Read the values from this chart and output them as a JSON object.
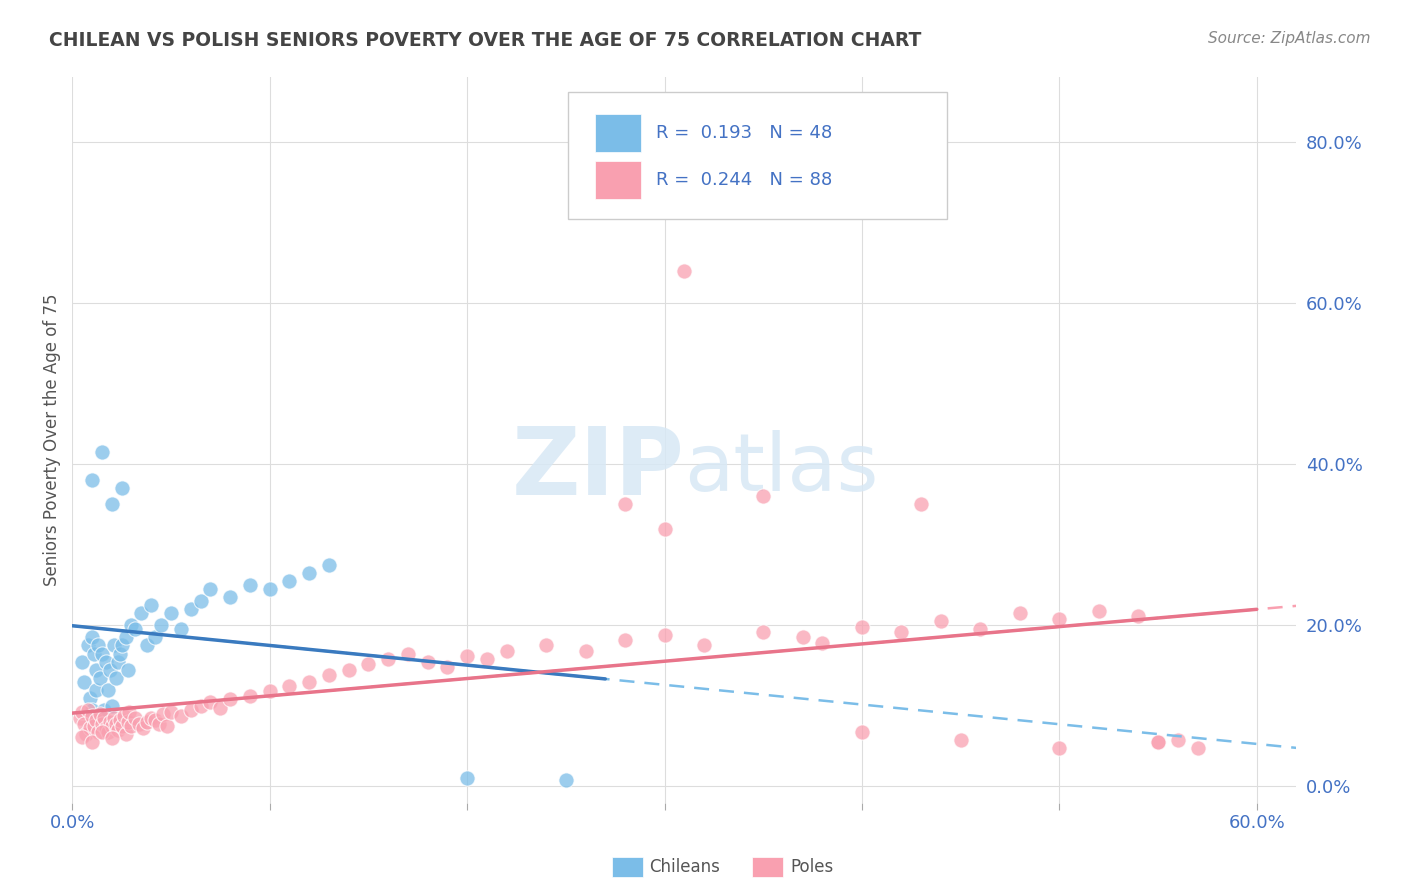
{
  "title": "CHILEAN VS POLISH SENIORS POVERTY OVER THE AGE OF 75 CORRELATION CHART",
  "source_text": "Source: ZipAtlas.com",
  "ylabel": "Seniors Poverty Over the Age of 75",
  "xlim": [
    0.0,
    0.62
  ],
  "ylim": [
    -0.02,
    0.88
  ],
  "xticks": [
    0.0,
    0.1,
    0.2,
    0.3,
    0.4,
    0.5,
    0.6
  ],
  "yticks": [
    0.0,
    0.2,
    0.4,
    0.6,
    0.8
  ],
  "yticklabels_right": [
    "0.0%",
    "20.0%",
    "40.0%",
    "60.0%",
    "80.0%"
  ],
  "chilean_color": "#7bbde8",
  "polish_color": "#f9a0b0",
  "chilean_line_color": "#3a7abf",
  "polish_line_color": "#e8748a",
  "chilean_R": 0.193,
  "chilean_N": 48,
  "polish_R": 0.244,
  "polish_N": 88,
  "watermark_zip": "ZIP",
  "watermark_atlas": "atlas",
  "background_color": "#ffffff",
  "grid_color": "#dddddd",
  "title_color": "#444444",
  "source_color": "#888888",
  "axis_label_color": "#555555",
  "tick_label_color": "#4472c4",
  "legend_text_color": "#4472c4",
  "bottom_legend_color": "#555555",
  "chilean_x": [
    0.005,
    0.006,
    0.008,
    0.009,
    0.01,
    0.01,
    0.011,
    0.012,
    0.012,
    0.013,
    0.014,
    0.015,
    0.016,
    0.017,
    0.018,
    0.019,
    0.02,
    0.021,
    0.022,
    0.023,
    0.024,
    0.025,
    0.027,
    0.028,
    0.03,
    0.032,
    0.035,
    0.038,
    0.04,
    0.042,
    0.045,
    0.05,
    0.055,
    0.06,
    0.065,
    0.07,
    0.08,
    0.09,
    0.1,
    0.11,
    0.12,
    0.13,
    0.01,
    0.015,
    0.02,
    0.025,
    0.2,
    0.25
  ],
  "chilean_y": [
    0.155,
    0.13,
    0.175,
    0.11,
    0.185,
    0.095,
    0.165,
    0.12,
    0.145,
    0.175,
    0.135,
    0.165,
    0.095,
    0.155,
    0.12,
    0.145,
    0.1,
    0.175,
    0.135,
    0.155,
    0.165,
    0.175,
    0.185,
    0.145,
    0.2,
    0.195,
    0.215,
    0.175,
    0.225,
    0.185,
    0.2,
    0.215,
    0.195,
    0.22,
    0.23,
    0.245,
    0.235,
    0.25,
    0.245,
    0.255,
    0.265,
    0.275,
    0.38,
    0.415,
    0.35,
    0.37,
    0.01,
    0.008
  ],
  "polish_x": [
    0.004,
    0.005,
    0.006,
    0.007,
    0.008,
    0.009,
    0.01,
    0.011,
    0.012,
    0.013,
    0.014,
    0.015,
    0.016,
    0.017,
    0.018,
    0.019,
    0.02,
    0.021,
    0.022,
    0.023,
    0.024,
    0.025,
    0.026,
    0.027,
    0.028,
    0.029,
    0.03,
    0.032,
    0.034,
    0.036,
    0.038,
    0.04,
    0.042,
    0.044,
    0.046,
    0.048,
    0.05,
    0.055,
    0.06,
    0.065,
    0.07,
    0.075,
    0.08,
    0.09,
    0.1,
    0.11,
    0.12,
    0.13,
    0.14,
    0.15,
    0.16,
    0.17,
    0.18,
    0.19,
    0.2,
    0.21,
    0.22,
    0.24,
    0.26,
    0.28,
    0.3,
    0.32,
    0.35,
    0.37,
    0.38,
    0.4,
    0.42,
    0.44,
    0.46,
    0.48,
    0.5,
    0.52,
    0.54,
    0.56,
    0.005,
    0.01,
    0.015,
    0.02,
    0.28,
    0.3,
    0.35,
    0.45,
    0.5,
    0.55,
    0.4,
    0.43,
    0.55,
    0.57
  ],
  "polish_y": [
    0.085,
    0.092,
    0.078,
    0.065,
    0.095,
    0.072,
    0.088,
    0.075,
    0.082,
    0.068,
    0.09,
    0.078,
    0.085,
    0.072,
    0.068,
    0.08,
    0.075,
    0.085,
    0.078,
    0.07,
    0.082,
    0.075,
    0.088,
    0.065,
    0.08,
    0.092,
    0.075,
    0.085,
    0.078,
    0.072,
    0.08,
    0.085,
    0.082,
    0.078,
    0.09,
    0.075,
    0.092,
    0.088,
    0.095,
    0.1,
    0.105,
    0.098,
    0.108,
    0.112,
    0.118,
    0.125,
    0.13,
    0.138,
    0.145,
    0.152,
    0.158,
    0.165,
    0.155,
    0.148,
    0.162,
    0.158,
    0.168,
    0.175,
    0.168,
    0.182,
    0.188,
    0.175,
    0.192,
    0.185,
    0.178,
    0.198,
    0.192,
    0.205,
    0.195,
    0.215,
    0.208,
    0.218,
    0.212,
    0.058,
    0.062,
    0.055,
    0.068,
    0.06,
    0.35,
    0.32,
    0.36,
    0.058,
    0.048,
    0.055,
    0.068,
    0.35,
    0.055,
    0.048
  ],
  "polish_outlier_x": [
    0.31
  ],
  "polish_outlier_y": [
    0.64
  ]
}
